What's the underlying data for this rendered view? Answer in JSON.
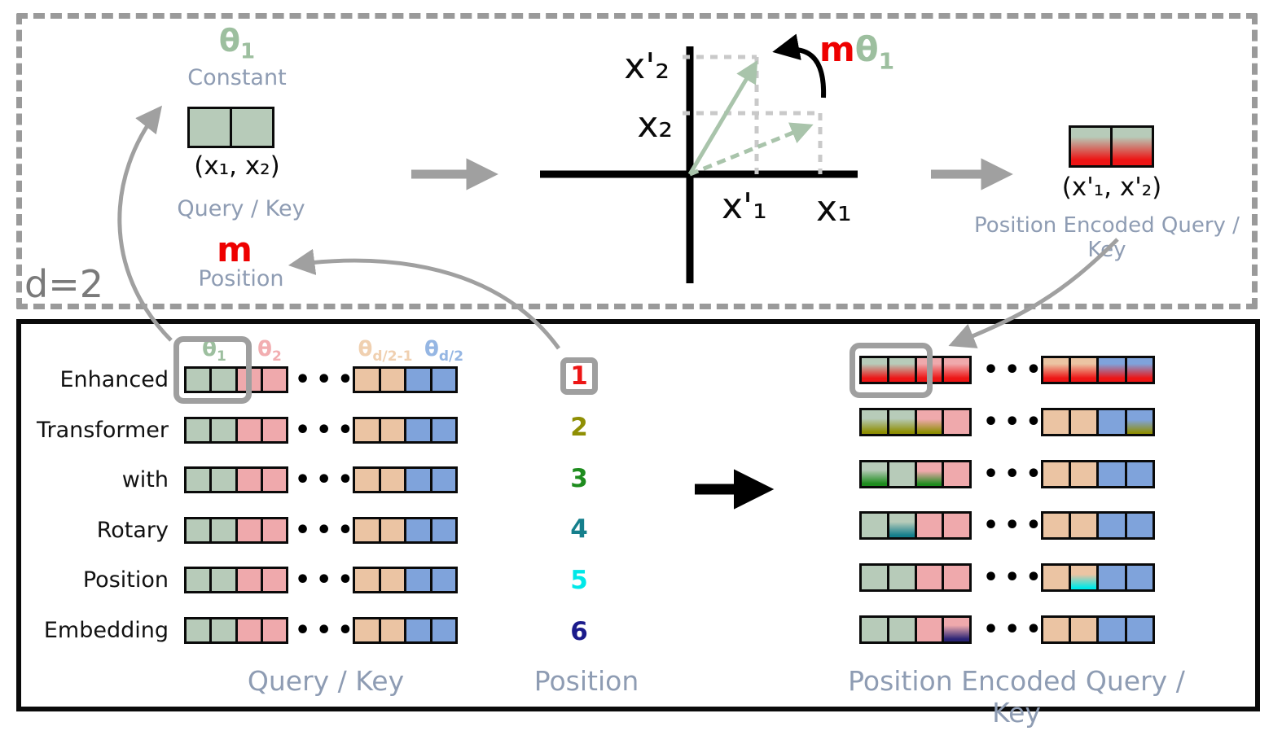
{
  "top_panel": {
    "d_label": "d=2",
    "theta": {
      "base": "θ",
      "sub": "1"
    },
    "constant_label": "Constant",
    "qk_coords": "(x₁, x₂)",
    "qk_label": "Query / Key",
    "m_label": "m",
    "position_label": "Position",
    "rotation": {
      "m": "m",
      "theta": "θ",
      "sub": "1"
    },
    "axis_labels": {
      "x2_rot": "x'₂",
      "x2": "x₂",
      "x1_rot": "x'₁",
      "x1": "x₁"
    },
    "pe_coords": "(x'₁, x'₂)",
    "pe_label": "Position Encoded Query / Key"
  },
  "bottom_panel": {
    "theta_headers": [
      {
        "base": "θ",
        "sub": "1",
        "color": "#9dbf9f"
      },
      {
        "base": "θ",
        "sub": "2",
        "color": "#f2aeb1"
      },
      {
        "base": "θ",
        "sub": "d/2-1",
        "color": "#f0d0b0"
      },
      {
        "base": "θ",
        "sub": "d/2",
        "color": "#95b6e3"
      }
    ],
    "dots": "•••",
    "qk_pattern": [
      "green",
      "green",
      "pink",
      "pink",
      "tan",
      "tan",
      "blue",
      "blue"
    ],
    "rows": [
      {
        "word": "Enhanced",
        "pos": "1",
        "pos_color": "#ed1515",
        "highlighted": true,
        "pe_cells": [
          {
            "t": "red",
            "s": 0.65
          },
          {
            "t": "red",
            "s": 0.65
          },
          {
            "t": "red",
            "s": 0.65
          },
          {
            "t": "red",
            "s": 0.65
          },
          {
            "t": "red",
            "s": 0.65
          },
          {
            "t": "red",
            "s": 0.65
          },
          {
            "t": "red",
            "s": 0.65
          },
          {
            "t": "red",
            "s": 0.65
          }
        ]
      },
      {
        "word": "Transformer",
        "pos": "2",
        "pos_color": "#8f8f04",
        "highlighted": false,
        "pe_cells": [
          {
            "t": "olive",
            "s": 0.45
          },
          {
            "t": "olive",
            "s": 0.45
          },
          {
            "t": "olive",
            "s": 0.38
          },
          {},
          {},
          {},
          {},
          {
            "t": "olive",
            "s": 0.32
          }
        ]
      },
      {
        "word": "with",
        "pos": "3",
        "pos_color": "#1e8c1e",
        "highlighted": false,
        "pe_cells": [
          {
            "t": "green_pos",
            "s": 0.5
          },
          {},
          {
            "t": "green_pos",
            "s": 0.4
          },
          {},
          {},
          {},
          {},
          {}
        ]
      },
      {
        "word": "Rotary",
        "pos": "4",
        "pos_color": "#157f8c",
        "highlighted": false,
        "pe_cells": [
          {},
          {
            "t": "teal",
            "s": 0.45
          },
          {},
          {},
          {},
          {},
          {},
          {}
        ]
      },
      {
        "word": "Position",
        "pos": "5",
        "pos_color": "#00e8e8",
        "highlighted": false,
        "pe_cells": [
          {},
          {},
          {},
          {},
          {},
          {
            "t": "cyan",
            "s": 0.4
          },
          {},
          {}
        ]
      },
      {
        "word": "Embedding",
        "pos": "6",
        "pos_color": "#1b1b8c",
        "highlighted": false,
        "pe_cells": [
          {},
          {},
          {},
          {
            "t": "navy",
            "s": 0.5
          },
          {},
          {},
          {},
          {}
        ]
      }
    ],
    "footer": {
      "qk": "Query / Key",
      "pos": "Position",
      "peqk": "Position Encoded Query / Key"
    }
  },
  "colors": {
    "green": "#b7cbb9",
    "pink": "#efa9ac",
    "tan": "#ebc4a3",
    "blue": "#7fa3db",
    "red": "#ed1515",
    "olive": "#8f8f04",
    "green_pos": "#1e8c1e",
    "teal": "#157f8c",
    "cyan": "#00e8e8",
    "navy": "#2a2375",
    "slate_label": "#8e9cb3",
    "sage_text": "#9dbf9f",
    "gray_arrow": "#a0a0a0",
    "m_red": "#ee0000",
    "d_gray": "#7a7a7a"
  }
}
